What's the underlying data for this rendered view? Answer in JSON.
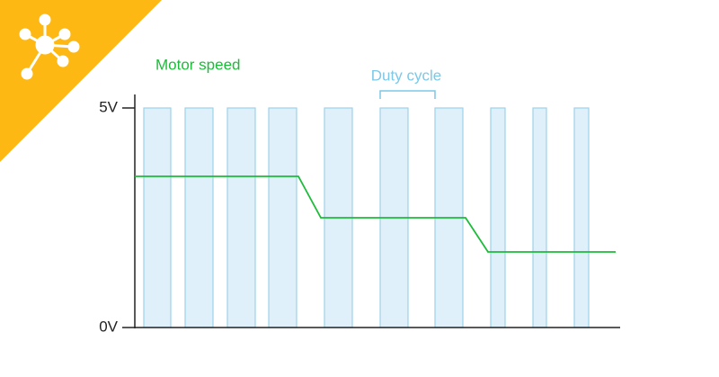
{
  "legend": {
    "motor_speed": "Motor speed",
    "duty_cycle": "Duty cycle"
  },
  "axis": {
    "high": "5V",
    "low": "0V"
  }
}
